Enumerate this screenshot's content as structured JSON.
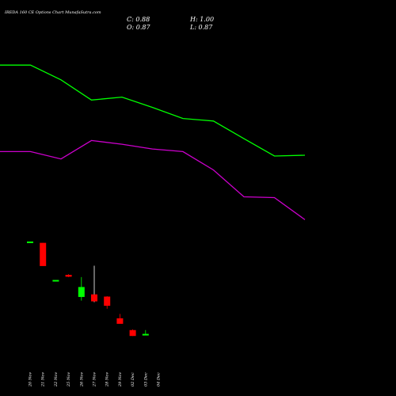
{
  "header": {
    "title": "IREDA 160  CE Options  Chart MunafaSutra.com",
    "close_text": "C: 0.88",
    "high_text": "H: 1.00",
    "open_text": "O: 0.87",
    "low_text": "L: 0.87"
  },
  "colors": {
    "background": "#000000",
    "up": "#00ff00",
    "down": "#ff0000",
    "flat": "#ffffff",
    "line_upper": "#00ff00",
    "line_lower": "#cc00cc",
    "text": "#ffffff"
  },
  "chart_data": {
    "type": "candlestick",
    "x_tick_labels": [
      "20 Nov",
      "21 Nov",
      "22 Nov",
      "25 Nov",
      "26 Nov",
      "27 Nov",
      "28 Nov",
      "29 Nov",
      "02 Dec",
      "03 Dec",
      "04 Dec"
    ],
    "candles": [
      {
        "date": "20 Nov",
        "open": 3.39,
        "high": 3.39,
        "low": 3.37,
        "close": 3.38
      },
      {
        "date": "21 Nov",
        "open": 3.37,
        "high": 3.37,
        "low": 2.74,
        "close": 2.74
      },
      {
        "date": "22 Nov",
        "open": 2.34,
        "high": 2.36,
        "low": 2.32,
        "close": 2.34
      },
      {
        "date": "25 Nov",
        "open": 2.5,
        "high": 2.52,
        "low": 2.44,
        "close": 2.45
      },
      {
        "date": "26 Nov",
        "open": 1.9,
        "high": 2.44,
        "low": 1.8,
        "close": 2.17
      },
      {
        "date": "27 Nov",
        "open": 1.97,
        "high": 2.75,
        "low": 1.76,
        "close": 1.78
      },
      {
        "date": "28 Nov",
        "open": 1.91,
        "high": 1.92,
        "low": 1.58,
        "close": 1.66
      },
      {
        "date": "29 Nov",
        "open": 1.32,
        "high": 1.44,
        "low": 1.2,
        "close": 1.17
      },
      {
        "date": "02 Dec",
        "open": 1.0,
        "high": 1.02,
        "low": 0.84,
        "close": 0.84
      },
      {
        "date": "03 Dec",
        "open": 0.87,
        "high": 1.0,
        "low": 0.87,
        "close": 0.88
      }
    ],
    "lines": [
      {
        "color": "#00ff00",
        "values": [
          8.2,
          8.2,
          7.8,
          7.25,
          7.33,
          7.05,
          6.75,
          6.68,
          6.2,
          5.73,
          5.75
        ]
      },
      {
        "color": "#cc00cc",
        "values": [
          5.85,
          5.85,
          5.65,
          6.15,
          6.05,
          5.92,
          5.85,
          5.35,
          4.62,
          4.6,
          4.0
        ]
      }
    ],
    "ylim": [
      0.5,
      9.0
    ],
    "grid": false
  }
}
